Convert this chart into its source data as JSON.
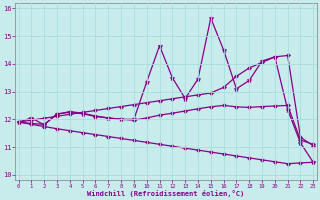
{
  "xlabel": "Windchill (Refroidissement éolien,°C)",
  "bg_color": "#c8ecec",
  "line_color": "#880088",
  "grid_color": "#aadddd",
  "x_ticks": [
    0,
    1,
    2,
    3,
    4,
    5,
    6,
    7,
    8,
    9,
    10,
    11,
    12,
    13,
    14,
    15,
    16,
    17,
    18,
    19,
    20,
    21,
    22,
    23
  ],
  "ylim": [
    9.8,
    16.2
  ],
  "xlim": [
    -0.3,
    23.3
  ],
  "yticks": [
    10,
    11,
    12,
    13,
    14,
    15,
    16
  ],
  "series": [
    {
      "x": [
        0,
        1,
        2,
        3,
        4,
        5,
        6,
        7,
        8,
        9,
        10,
        11,
        12,
        13,
        14,
        15,
        16,
        17,
        18,
        19,
        20,
        21,
        22,
        23
      ],
      "y": [
        11.9,
        12.05,
        11.8,
        12.2,
        12.25,
        12.2,
        12.1,
        12.05,
        12.0,
        12.0,
        13.35,
        14.65,
        13.5,
        12.75,
        13.45,
        15.65,
        14.5,
        13.1,
        13.4,
        14.1,
        14.25,
        12.35,
        11.15,
        10.45
      ],
      "marker": "*",
      "ms": 3.5,
      "lw": 0.9
    },
    {
      "x": [
        0,
        1,
        2,
        3,
        4,
        5,
        6,
        7,
        8,
        9,
        10,
        11,
        12,
        13,
        14,
        15,
        16,
        17,
        18,
        19,
        20,
        21,
        22,
        23
      ],
      "y": [
        11.9,
        11.97,
        12.04,
        12.11,
        12.18,
        12.25,
        12.32,
        12.39,
        12.46,
        12.53,
        12.6,
        12.67,
        12.74,
        12.81,
        12.88,
        12.95,
        13.15,
        13.55,
        13.85,
        14.05,
        14.25,
        14.3,
        11.35,
        11.05
      ],
      "marker": "D",
      "ms": 2.0,
      "lw": 0.9
    },
    {
      "x": [
        0,
        1,
        2,
        3,
        4,
        5,
        6,
        7,
        8,
        9,
        10,
        11,
        12,
        13,
        14,
        15,
        16,
        17,
        18,
        19,
        20,
        21,
        22,
        23
      ],
      "y": [
        11.9,
        11.82,
        11.74,
        11.66,
        11.59,
        11.52,
        11.45,
        11.38,
        11.31,
        11.24,
        11.17,
        11.1,
        11.03,
        10.96,
        10.89,
        10.82,
        10.75,
        10.68,
        10.61,
        10.54,
        10.47,
        10.4,
        10.43,
        10.45
      ],
      "marker": "D",
      "ms": 2.0,
      "lw": 0.9
    },
    {
      "x": [
        0,
        1,
        2,
        3,
        4,
        5,
        6,
        7,
        8,
        9,
        10,
        11,
        12,
        13,
        14,
        15,
        16,
        17,
        18,
        19,
        20,
        21,
        22,
        23
      ],
      "y": [
        11.9,
        11.85,
        11.82,
        12.18,
        12.28,
        12.22,
        12.12,
        12.05,
        12.0,
        11.97,
        12.05,
        12.15,
        12.22,
        12.3,
        12.38,
        12.45,
        12.5,
        12.45,
        12.43,
        12.46,
        12.48,
        12.5,
        11.25,
        11.1
      ],
      "marker": "D",
      "ms": 2.0,
      "lw": 0.9
    }
  ]
}
